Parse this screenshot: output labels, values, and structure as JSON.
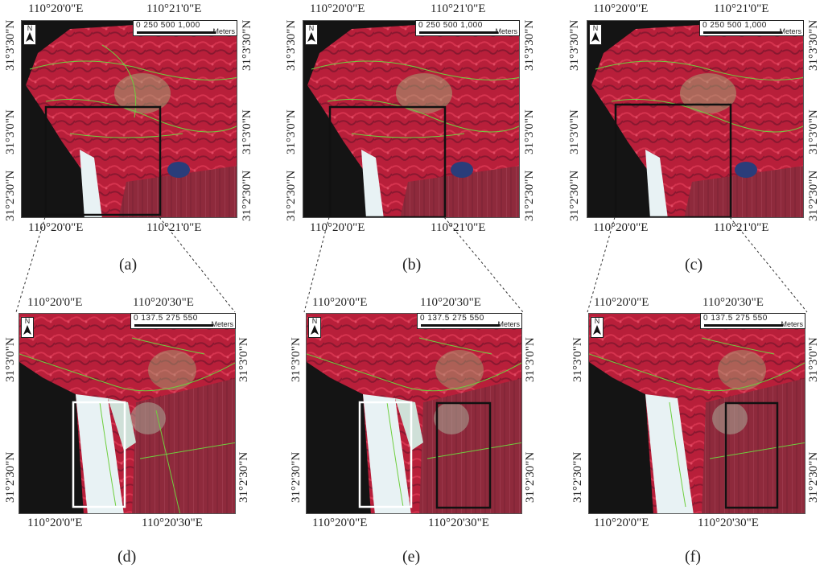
{
  "panels": [
    {
      "caption": "(a)",
      "top_lon": [
        "110°20'0\"E",
        "110°21'0\"E"
      ],
      "bottom_lon": [
        "110°20'0\"E",
        "110°21'0\"E"
      ],
      "left_lat": [
        "31°3'30\"N",
        "31°3'0\"N",
        "31°2'30\"N"
      ],
      "right_lat": [
        "31°3'30\"N",
        "31°3'0\"N",
        "31°2'30\"N"
      ],
      "scale": "0    250  500        1,000",
      "unit": "Meters",
      "north": "N"
    },
    {
      "caption": "(b)",
      "top_lon": [
        "110°20'0\"E",
        "110°21'0\"E"
      ],
      "bottom_lon": [
        "110°20'0\"E",
        "110°21'0\"E"
      ],
      "left_lat": [
        "31°3'30\"N",
        "31°3'0\"N",
        "31°2'30\"N"
      ],
      "right_lat": [
        "31°3'30\"N",
        "31°3'0\"N",
        "31°2'30\"N"
      ],
      "scale": "0    250  500        1,000",
      "unit": "Meters",
      "north": "N"
    },
    {
      "caption": "(c)",
      "top_lon": [
        "110°20'0\"E",
        "110°21'0\"E"
      ],
      "bottom_lon": [
        "110°20'0\"E",
        "110°21'0\"E"
      ],
      "left_lat": [
        "31°3'30\"N",
        "31°3'0\"N",
        "31°2'30\"N"
      ],
      "right_lat": [
        "31°3'30\"N",
        "31°3'0\"N",
        "31°2'30\"N"
      ],
      "scale": "0    250  500        1,000",
      "unit": "Meters",
      "north": "N"
    },
    {
      "caption": "(d)",
      "top_lon": [
        "110°20'0\"E",
        "110°20'30\"E"
      ],
      "bottom_lon": [
        "110°20'0\"E",
        "110°20'30\"E"
      ],
      "left_lat": [
        "31°3'0\"N",
        "31°2'30\"N"
      ],
      "right_lat": [
        "31°3'0\"N",
        "31°2'30\"N"
      ],
      "scale": "0    137.5 275        550",
      "unit": "Meters",
      "north": "N"
    },
    {
      "caption": "(e)",
      "top_lon": [
        "110°20'0\"E",
        "110°20'30\"E"
      ],
      "bottom_lon": [
        "110°20'0\"E",
        "110°20'30\"E"
      ],
      "left_lat": [
        "31°3'0\"N",
        "31°2'30\"N"
      ],
      "right_lat": [
        "31°3'0\"N",
        "31°2'30\"N"
      ],
      "scale": "0    137.5 275        550",
      "unit": "Meters",
      "north": "N"
    },
    {
      "caption": "(f)",
      "top_lon": [
        "110°20'0\"E",
        "110°20'30\"E"
      ],
      "bottom_lon": [
        "110°20'0\"E",
        "110°20'30\"E"
      ],
      "left_lat": [
        "31°3'0\"N",
        "31°2'30\"N"
      ],
      "right_lat": [
        "31°3'0\"N",
        "31°2'30\"N"
      ],
      "scale": "0    137.5 275        550",
      "unit": "Meters",
      "north": "N"
    }
  ],
  "colors": {
    "vegetation": "#b81f3a",
    "vegetation_dark": "#6e1526",
    "water": "#e8f2f4",
    "background": "#141414",
    "segment_line": "#6fcf3f",
    "zoom_box_black": "#111111",
    "zoom_box_white": "#ffffff"
  }
}
